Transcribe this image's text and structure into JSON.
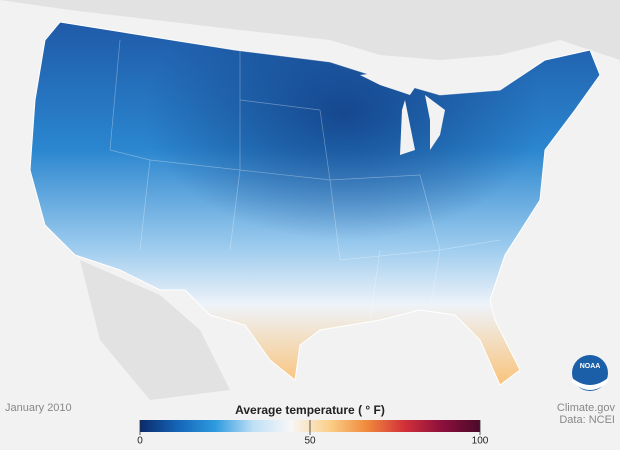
{
  "caption": {
    "date": "January 2010",
    "credit": "Climate.gov",
    "source": "Data: NCEI"
  },
  "logo": {
    "text": "NOAA"
  },
  "legend": {
    "title": "Average temperature ( ° F)",
    "range": [
      0,
      100
    ],
    "ticks": [
      0,
      50,
      100
    ],
    "colors": [
      "#0b2a6b",
      "#1565b8",
      "#2e9be0",
      "#bfe0f5",
      "#f7f7f7",
      "#fbd08a",
      "#f08a3c",
      "#d2303a",
      "#8c0f3c",
      "#4a0a2a"
    ]
  }
}
